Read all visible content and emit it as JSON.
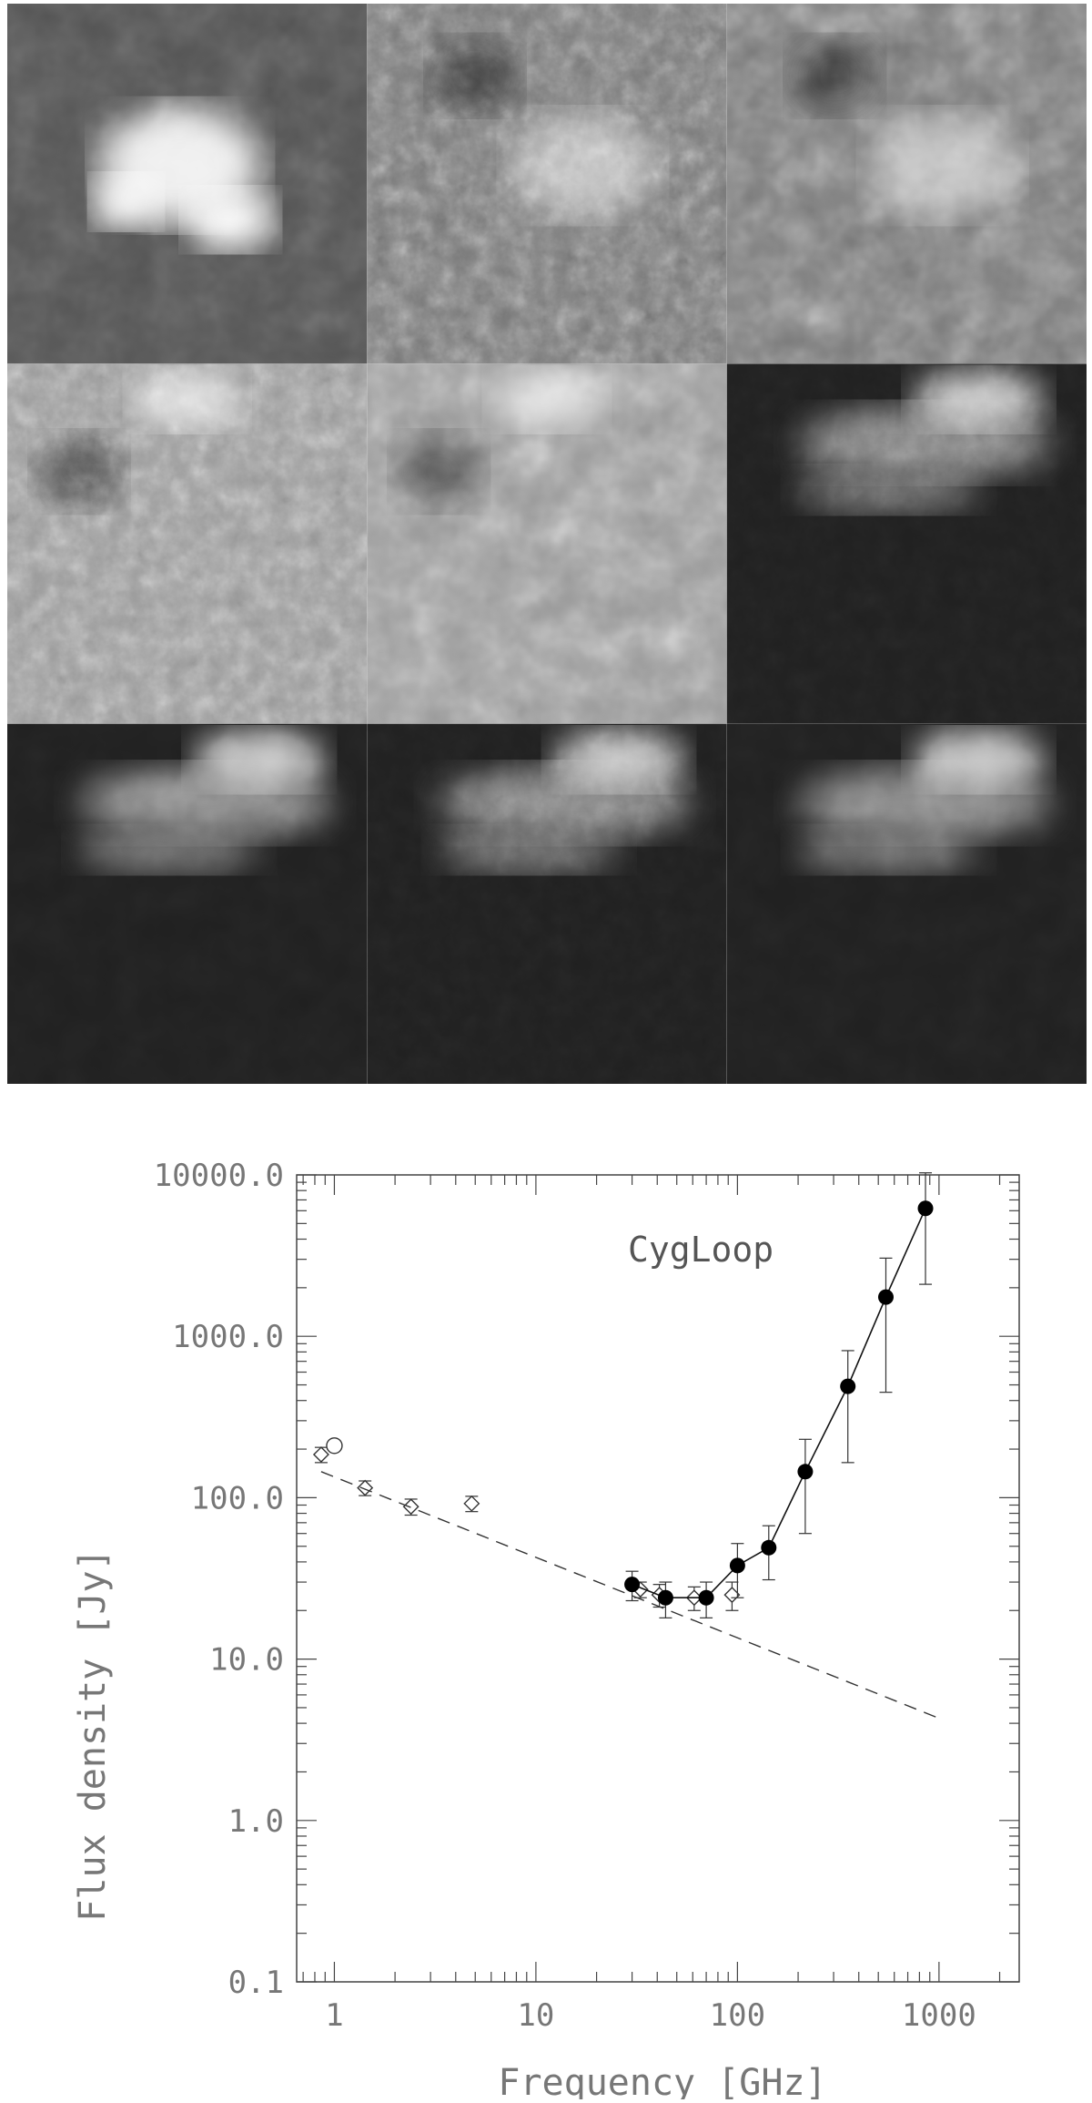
{
  "mosaic": {
    "rows": 3,
    "cols": 3,
    "panels": [
      {
        "id": "p1",
        "tone": "bright-blobs"
      },
      {
        "id": "p2",
        "tone": "mid-noise"
      },
      {
        "id": "p3",
        "tone": "mid-noise"
      },
      {
        "id": "p4",
        "tone": "light-noise"
      },
      {
        "id": "p5",
        "tone": "light-noise"
      },
      {
        "id": "p6",
        "tone": "dark-filament"
      },
      {
        "id": "p7",
        "tone": "dark-filament"
      },
      {
        "id": "p8",
        "tone": "dark-filament"
      },
      {
        "id": "p9",
        "tone": "dark-filament"
      }
    ]
  },
  "chart_data": {
    "type": "scatter",
    "annotation": "CygLoop",
    "xlabel": "Frequency [GHz]",
    "ylabel": "Flux density [Jy]",
    "x_scale": "log",
    "y_scale": "log",
    "xlim": [
      0.65,
      2500
    ],
    "ylim": [
      0.1,
      10000
    ],
    "x_ticks": [
      1,
      10,
      100,
      1000
    ],
    "x_tick_labels": [
      "1",
      "10",
      "100",
      "1000"
    ],
    "y_ticks": [
      0.1,
      1,
      10,
      100,
      1000,
      10000
    ],
    "y_tick_labels": [
      "0.1",
      "1.0",
      "10.0",
      "100.0",
      "1000.0",
      "10000.0"
    ],
    "grid": false,
    "series": [
      {
        "marker": "diamond-open",
        "points": [
          {
            "x": 0.86,
            "y": 185,
            "err": 20
          },
          {
            "x": 1.42,
            "y": 115,
            "err": 12
          },
          {
            "x": 2.4,
            "y": 88,
            "err": 10
          },
          {
            "x": 4.8,
            "y": 92,
            "err": 10
          },
          {
            "x": 33,
            "y": 27,
            "err": 3
          },
          {
            "x": 41,
            "y": 25,
            "err": 4
          },
          {
            "x": 61,
            "y": 24,
            "err": 4
          },
          {
            "x": 94,
            "y": 25,
            "err": 5
          }
        ]
      },
      {
        "marker": "circle-open",
        "points": [
          {
            "x": 1.0,
            "y": 210,
            "err": 0
          }
        ]
      },
      {
        "marker": "circle-filled",
        "connected": true,
        "points": [
          {
            "x": 30,
            "y": 29,
            "err": 6
          },
          {
            "x": 44,
            "y": 24,
            "err": 6
          },
          {
            "x": 70,
            "y": 24,
            "err": 6
          },
          {
            "x": 100,
            "y": 38,
            "err": 14
          },
          {
            "x": 143,
            "y": 49,
            "err": 18
          },
          {
            "x": 217,
            "y": 145,
            "err": 85
          },
          {
            "x": 353,
            "y": 490,
            "err": 325
          },
          {
            "x": 545,
            "y": 1750,
            "err": 1300
          },
          {
            "x": 857,
            "y": 6200,
            "err": 4100
          }
        ]
      },
      {
        "style": "dashed-line",
        "points": [
          {
            "x": 0.86,
            "y": 145
          },
          {
            "x": 1000,
            "y": 4.3
          }
        ]
      }
    ]
  }
}
